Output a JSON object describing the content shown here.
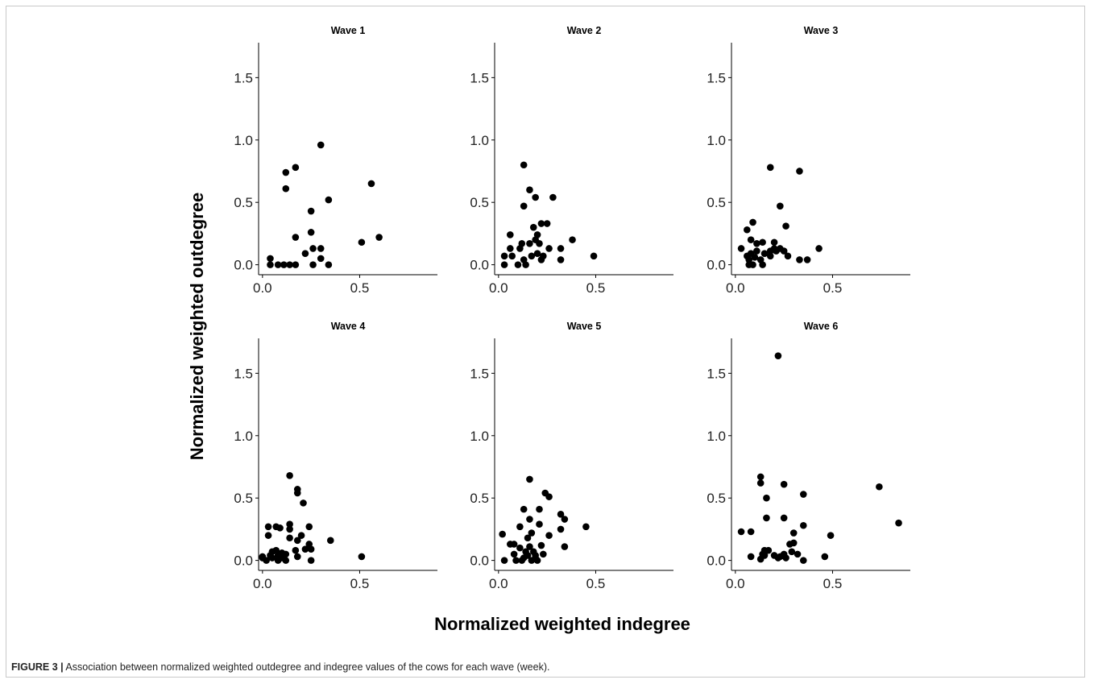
{
  "figure": {
    "caption_label": "FIGURE 3 |",
    "caption_text": "Association between normalized weighted outdegree and indegree values of the cows for each wave (week).",
    "xlabel": "Normalized weighted indegree",
    "ylabel": "Normalized weighted outdegree"
  },
  "chart_data": {
    "type": "scatter",
    "xlim": [
      -0.02,
      0.9
    ],
    "ylim": [
      -0.08,
      1.78
    ],
    "xticks": [
      "0.0",
      "0.5"
    ],
    "xtick_values": [
      0,
      0.5
    ],
    "yticks": [
      "0.0",
      "0.5",
      "1.0",
      "1.5"
    ],
    "ytick_values": [
      0,
      0.5,
      1.0,
      1.5
    ],
    "grid": false,
    "marker_color": "#000000",
    "panels": [
      {
        "title": "Wave 1",
        "points": [
          [
            0.04,
            0.05
          ],
          [
            0.04,
            0
          ],
          [
            0.08,
            0
          ],
          [
            0.11,
            0
          ],
          [
            0.12,
            0.74
          ],
          [
            0.12,
            0.61
          ],
          [
            0.14,
            0
          ],
          [
            0.17,
            0.78
          ],
          [
            0.17,
            0.22
          ],
          [
            0.17,
            0
          ],
          [
            0.22,
            0.09
          ],
          [
            0.25,
            0.43
          ],
          [
            0.25,
            0.26
          ],
          [
            0.26,
            0.13
          ],
          [
            0.26,
            0
          ],
          [
            0.3,
            0.96
          ],
          [
            0.3,
            0.13
          ],
          [
            0.3,
            0.05
          ],
          [
            0.34,
            0.52
          ],
          [
            0.34,
            0
          ],
          [
            0.51,
            0.18
          ],
          [
            0.56,
            0.65
          ],
          [
            0.6,
            0.22
          ]
        ]
      },
      {
        "title": "Wave 2",
        "points": [
          [
            0.03,
            0
          ],
          [
            0.03,
            0.07
          ],
          [
            0.06,
            0.24
          ],
          [
            0.06,
            0.13
          ],
          [
            0.07,
            0.07
          ],
          [
            0.1,
            0
          ],
          [
            0.11,
            0.13
          ],
          [
            0.12,
            0.17
          ],
          [
            0.13,
            0.8
          ],
          [
            0.13,
            0.47
          ],
          [
            0.13,
            0.04
          ],
          [
            0.14,
            0
          ],
          [
            0.16,
            0.6
          ],
          [
            0.16,
            0.17
          ],
          [
            0.17,
            0.07
          ],
          [
            0.18,
            0.3
          ],
          [
            0.19,
            0.54
          ],
          [
            0.19,
            0.2
          ],
          [
            0.2,
            0.24
          ],
          [
            0.2,
            0.09
          ],
          [
            0.21,
            0.17
          ],
          [
            0.22,
            0.33
          ],
          [
            0.22,
            0.04
          ],
          [
            0.23,
            0.07
          ],
          [
            0.25,
            0.33
          ],
          [
            0.26,
            0.13
          ],
          [
            0.28,
            0.54
          ],
          [
            0.32,
            0.04
          ],
          [
            0.32,
            0.13
          ],
          [
            0.38,
            0.2
          ],
          [
            0.49,
            0.07
          ]
        ]
      },
      {
        "title": "Wave 3",
        "points": [
          [
            0.03,
            0.13
          ],
          [
            0.06,
            0.28
          ],
          [
            0.06,
            0.07
          ],
          [
            0.07,
            0.04
          ],
          [
            0.07,
            0
          ],
          [
            0.08,
            0.09
          ],
          [
            0.08,
            0.2
          ],
          [
            0.09,
            0.34
          ],
          [
            0.09,
            0
          ],
          [
            0.1,
            0.06
          ],
          [
            0.11,
            0.17
          ],
          [
            0.11,
            0.11
          ],
          [
            0.13,
            0.04
          ],
          [
            0.14,
            0.18
          ],
          [
            0.14,
            0
          ],
          [
            0.15,
            0.09
          ],
          [
            0.18,
            0.78
          ],
          [
            0.18,
            0.11
          ],
          [
            0.18,
            0.07
          ],
          [
            0.2,
            0.18
          ],
          [
            0.2,
            0.13
          ],
          [
            0.21,
            0.11
          ],
          [
            0.23,
            0.47
          ],
          [
            0.23,
            0.13
          ],
          [
            0.25,
            0.11
          ],
          [
            0.26,
            0.31
          ],
          [
            0.27,
            0.07
          ],
          [
            0.33,
            0.75
          ],
          [
            0.33,
            0.04
          ],
          [
            0.37,
            0.04
          ],
          [
            0.43,
            0.13
          ]
        ]
      },
      {
        "title": "Wave 4",
        "points": [
          [
            0,
            0.02
          ],
          [
            0,
            0.03
          ],
          [
            0.02,
            0
          ],
          [
            0.03,
            0.27
          ],
          [
            0.03,
            0.2
          ],
          [
            0.04,
            0.04
          ],
          [
            0.05,
            0.02
          ],
          [
            0.05,
            0.07
          ],
          [
            0.07,
            0.27
          ],
          [
            0.07,
            0.08
          ],
          [
            0.08,
            0.04
          ],
          [
            0.08,
            0
          ],
          [
            0.09,
            0.26
          ],
          [
            0.1,
            0.06
          ],
          [
            0.1,
            0.02
          ],
          [
            0.12,
            0
          ],
          [
            0.12,
            0.05
          ],
          [
            0.14,
            0.68
          ],
          [
            0.14,
            0.25
          ],
          [
            0.14,
            0.29
          ],
          [
            0.14,
            0.18
          ],
          [
            0.17,
            0.08
          ],
          [
            0.18,
            0.57
          ],
          [
            0.18,
            0.54
          ],
          [
            0.18,
            0.16
          ],
          [
            0.18,
            0.03
          ],
          [
            0.2,
            0.2
          ],
          [
            0.21,
            0.46
          ],
          [
            0.22,
            0.09
          ],
          [
            0.24,
            0.27
          ],
          [
            0.24,
            0.13
          ],
          [
            0.25,
            0
          ],
          [
            0.25,
            0.09
          ],
          [
            0.35,
            0.16
          ],
          [
            0.51,
            0.03
          ]
        ]
      },
      {
        "title": "Wave 5",
        "points": [
          [
            0.02,
            0.21
          ],
          [
            0.03,
            0
          ],
          [
            0.06,
            0.13
          ],
          [
            0.08,
            0.13
          ],
          [
            0.08,
            0.05
          ],
          [
            0.09,
            0
          ],
          [
            0.11,
            0.27
          ],
          [
            0.11,
            0.1
          ],
          [
            0.12,
            0
          ],
          [
            0.13,
            0.41
          ],
          [
            0.13,
            0.02
          ],
          [
            0.14,
            0.07
          ],
          [
            0.15,
            0.04
          ],
          [
            0.15,
            0.18
          ],
          [
            0.16,
            0.65
          ],
          [
            0.16,
            0.11
          ],
          [
            0.16,
            0.33
          ],
          [
            0.17,
            0.22
          ],
          [
            0.17,
            0
          ],
          [
            0.18,
            0.07
          ],
          [
            0.19,
            0.02
          ],
          [
            0.19,
            0.04
          ],
          [
            0.2,
            0
          ],
          [
            0.21,
            0.41
          ],
          [
            0.21,
            0.29
          ],
          [
            0.22,
            0.12
          ],
          [
            0.23,
            0.05
          ],
          [
            0.24,
            0.54
          ],
          [
            0.26,
            0.51
          ],
          [
            0.26,
            0.2
          ],
          [
            0.32,
            0.37
          ],
          [
            0.32,
            0.25
          ],
          [
            0.34,
            0.33
          ],
          [
            0.34,
            0.11
          ],
          [
            0.45,
            0.27
          ]
        ]
      },
      {
        "title": "Wave 6",
        "points": [
          [
            0.03,
            0.23
          ],
          [
            0.08,
            0.23
          ],
          [
            0.08,
            0.03
          ],
          [
            0.13,
            0.67
          ],
          [
            0.13,
            0.62
          ],
          [
            0.13,
            0.01
          ],
          [
            0.14,
            0.05
          ],
          [
            0.15,
            0.04
          ],
          [
            0.15,
            0.08
          ],
          [
            0.16,
            0.5
          ],
          [
            0.16,
            0.34
          ],
          [
            0.17,
            0.08
          ],
          [
            0.2,
            0.04
          ],
          [
            0.22,
            1.64
          ],
          [
            0.22,
            0.02
          ],
          [
            0.23,
            0.03
          ],
          [
            0.25,
            0.61
          ],
          [
            0.25,
            0.34
          ],
          [
            0.25,
            0.05
          ],
          [
            0.26,
            0.02
          ],
          [
            0.28,
            0.13
          ],
          [
            0.29,
            0.07
          ],
          [
            0.3,
            0.22
          ],
          [
            0.3,
            0.14
          ],
          [
            0.32,
            0.05
          ],
          [
            0.35,
            0.53
          ],
          [
            0.35,
            0.28
          ],
          [
            0.35,
            0
          ],
          [
            0.46,
            0.03
          ],
          [
            0.49,
            0.2
          ],
          [
            0.74,
            0.59
          ],
          [
            0.84,
            0.3
          ]
        ]
      }
    ]
  }
}
